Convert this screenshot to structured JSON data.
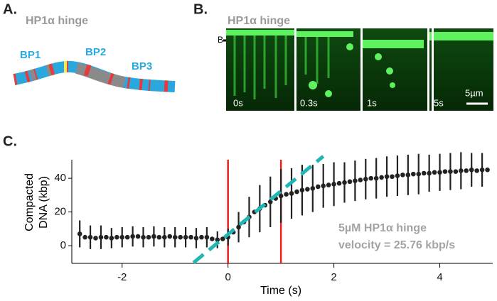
{
  "panel_a": {
    "label": "A.",
    "title": "HP1α hinge",
    "segments": [
      "BP1",
      "BP2",
      "BP3"
    ]
  },
  "panel_b": {
    "label": "B.",
    "title": "HP1α hinge",
    "marker": "B",
    "frames": [
      "0s",
      "0.3s",
      "1s",
      "5s"
    ],
    "scale_bar": "5µm"
  },
  "chart_data": {
    "type": "scatter",
    "panel_label": "C.",
    "xlabel": "Time (s)",
    "ylabel": [
      "Compacted",
      "DNA (kbp)"
    ],
    "xlim": [
      -2.95,
      5.0
    ],
    "ylim": [
      -10.5,
      51
    ],
    "xticks": [
      -2,
      0,
      2,
      4
    ],
    "yticks": [
      0,
      20,
      40
    ],
    "x": [
      -2.8,
      -2.7,
      -2.6,
      -2.5,
      -2.4,
      -2.3,
      -2.2,
      -2.1,
      -2.0,
      -1.9,
      -1.8,
      -1.7,
      -1.6,
      -1.5,
      -1.4,
      -1.3,
      -1.2,
      -1.1,
      -1.0,
      -0.9,
      -0.8,
      -0.7,
      -0.6,
      -0.5,
      -0.4,
      -0.3,
      -0.2,
      -0.1,
      0.0,
      0.1,
      0.2,
      0.3,
      0.4,
      0.5,
      0.6,
      0.7,
      0.8,
      0.9,
      1.0,
      1.1,
      1.2,
      1.3,
      1.4,
      1.5,
      1.6,
      1.7,
      1.8,
      1.9,
      2.0,
      2.1,
      2.2,
      2.3,
      2.4,
      2.5,
      2.6,
      2.7,
      2.8,
      2.9,
      3.0,
      3.1,
      3.2,
      3.3,
      3.4,
      3.5,
      3.6,
      3.7,
      3.8,
      3.9,
      4.0,
      4.1,
      4.2,
      4.3,
      4.4,
      4.5,
      4.6,
      4.7,
      4.8,
      4.9
    ],
    "series": [
      {
        "color": "#222222",
        "values": [
          7,
          5,
          5,
          4.5,
          5,
          5,
          4.5,
          5,
          5,
          5,
          5.5,
          5.5,
          5,
          5,
          5.5,
          5,
          5,
          5.5,
          5,
          5,
          5,
          5,
          4.5,
          5,
          5,
          4,
          3.5,
          4,
          5,
          8,
          11,
          14,
          17,
          20,
          22,
          24,
          26,
          28,
          29.5,
          30.5,
          31,
          32,
          33,
          33.5,
          34,
          35,
          35.5,
          36,
          36.5,
          37,
          37.5,
          38,
          38.5,
          39,
          39.5,
          40,
          40,
          40.5,
          41,
          41,
          41.5,
          42,
          42,
          42.5,
          42.5,
          43,
          43,
          43.5,
          43.5,
          44,
          44,
          44,
          44.5,
          44.5,
          45,
          44.5,
          45,
          45
        ],
        "errors": [
          8,
          null,
          7,
          null,
          7,
          null,
          6,
          null,
          6,
          null,
          6,
          null,
          6,
          null,
          6,
          null,
          6,
          null,
          6,
          null,
          6,
          null,
          6,
          null,
          6,
          null,
          5,
          null,
          5,
          null,
          9,
          null,
          12,
          null,
          14,
          null,
          15,
          null,
          16,
          null,
          15,
          null,
          15,
          null,
          14,
          null,
          13,
          null,
          13,
          null,
          12,
          null,
          12,
          null,
          12,
          null,
          12,
          null,
          12,
          null,
          12,
          null,
          12,
          null,
          12,
          null,
          11,
          null,
          11,
          null,
          11,
          null,
          11,
          null,
          10,
          null,
          10,
          null
        ]
      }
    ],
    "vlines": [
      0,
      1
    ],
    "vline_color": "#e8211f",
    "fit": {
      "slope": 25.76,
      "intercept": 6.7,
      "xrange": [
        -0.65,
        1.8
      ],
      "color": "#22b5b5"
    },
    "annotations": [
      "5µM HP1α hinge",
      "velocity = 25.76 kbp/s"
    ]
  }
}
